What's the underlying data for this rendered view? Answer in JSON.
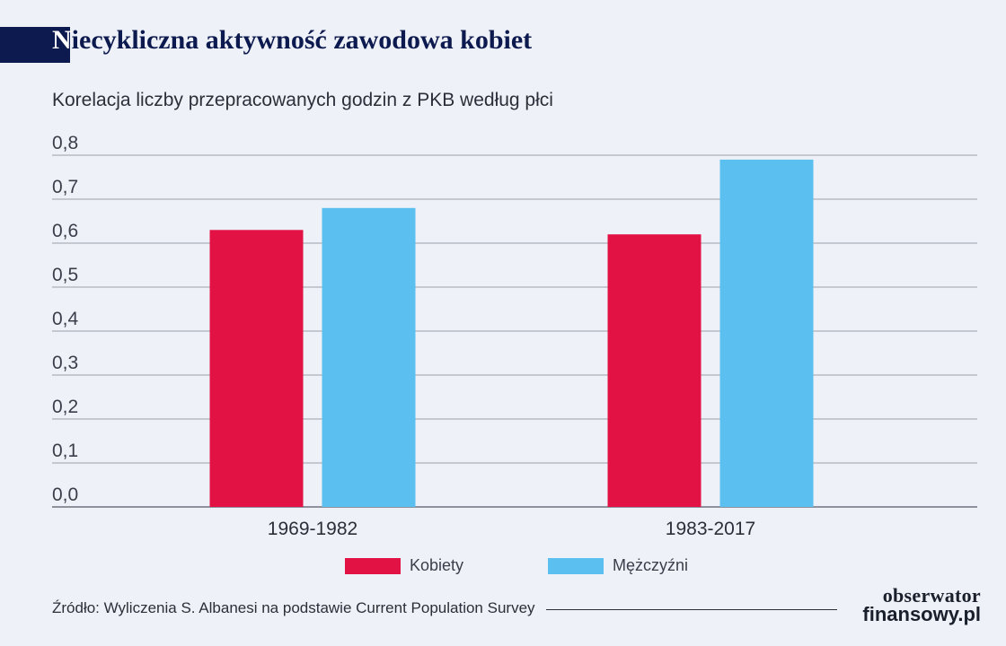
{
  "header": {
    "title_first_letter": "N",
    "title_rest": "iecykliczna aktywność zawodowa kobiet",
    "subtitle": "Korelacja liczby przepracowanych godzin z PKB według płci"
  },
  "chart_data": {
    "type": "bar",
    "title": "Niecykliczna aktywność zawodowa kobiet",
    "subtitle": "Korelacja liczby przepracowanych godzin z PKB według płci",
    "categories": [
      "1969-1982",
      "1983-2017"
    ],
    "series": [
      {
        "name": "Kobiety",
        "values": [
          0.63,
          0.62
        ],
        "color": "#e31245"
      },
      {
        "name": "Mężczyźni",
        "values": [
          0.68,
          0.79
        ],
        "color": "#5bc0ef"
      }
    ],
    "yticks": [
      "0,0",
      "0,1",
      "0,2",
      "0,3",
      "0,4",
      "0,5",
      "0,6",
      "0,7",
      "0,8"
    ],
    "ylim": [
      0,
      0.8
    ],
    "grid": true,
    "legend_position": "bottom",
    "xlabel": "",
    "ylabel": ""
  },
  "footer": {
    "source": "Źródło: Wyliczenia S. Albanesi na podstawie Current Population Survey",
    "logo_line1": "obserwator",
    "logo_line2": "finansowy.pl"
  }
}
